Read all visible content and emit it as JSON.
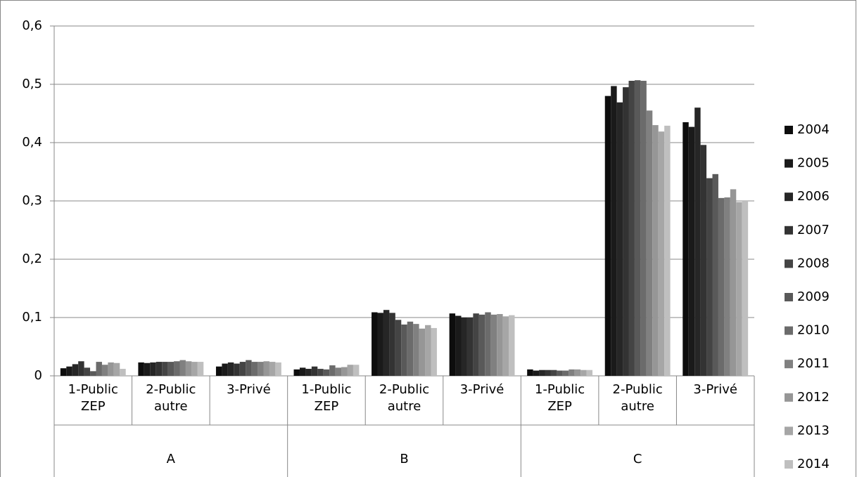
{
  "chart_data": {
    "type": "bar",
    "categories": [
      "1-Public ZEP",
      "2-Public autre",
      "3-Privé",
      "1-Public ZEP",
      "2-Public autre",
      "3-Privé",
      "1-Public ZEP",
      "2-Public autre",
      "3-Privé"
    ],
    "groups": [
      "A",
      "B",
      "C"
    ],
    "series": [
      {
        "name": "2004",
        "color": "#0d0d0d",
        "values": [
          0.013,
          0.023,
          0.016,
          0.011,
          0.109,
          0.107,
          0.011,
          0.48,
          0.435
        ]
      },
      {
        "name": "2005",
        "color": "#1a1a1a",
        "values": [
          0.016,
          0.022,
          0.021,
          0.014,
          0.108,
          0.103,
          0.009,
          0.497,
          0.427
        ]
      },
      {
        "name": "2006",
        "color": "#262626",
        "values": [
          0.02,
          0.023,
          0.023,
          0.012,
          0.113,
          0.1,
          0.01,
          0.469,
          0.46
        ]
      },
      {
        "name": "2007",
        "color": "#333333",
        "values": [
          0.025,
          0.024,
          0.021,
          0.016,
          0.108,
          0.1,
          0.01,
          0.495,
          0.396
        ]
      },
      {
        "name": "2008",
        "color": "#444444",
        "values": [
          0.014,
          0.024,
          0.024,
          0.012,
          0.096,
          0.107,
          0.01,
          0.506,
          0.339
        ]
      },
      {
        "name": "2009",
        "color": "#595959",
        "values": [
          0.008,
          0.024,
          0.027,
          0.011,
          0.088,
          0.105,
          0.009,
          0.507,
          0.346
        ]
      },
      {
        "name": "2010",
        "color": "#6b6b6b",
        "values": [
          0.024,
          0.025,
          0.024,
          0.018,
          0.093,
          0.109,
          0.009,
          0.506,
          0.305
        ]
      },
      {
        "name": "2011",
        "color": "#808080",
        "values": [
          0.019,
          0.027,
          0.024,
          0.014,
          0.089,
          0.105,
          0.011,
          0.455,
          0.306
        ]
      },
      {
        "name": "2012",
        "color": "#969696",
        "values": [
          0.023,
          0.025,
          0.025,
          0.015,
          0.081,
          0.106,
          0.011,
          0.43,
          0.32
        ]
      },
      {
        "name": "2013",
        "color": "#a6a6a6",
        "values": [
          0.022,
          0.024,
          0.024,
          0.019,
          0.087,
          0.102,
          0.01,
          0.419,
          0.298
        ]
      },
      {
        "name": "2014",
        "color": "#bfbfbf",
        "values": [
          0.012,
          0.024,
          0.023,
          0.019,
          0.082,
          0.104,
          0.01,
          0.429,
          0.3
        ]
      }
    ],
    "ylim": [
      0,
      0.6
    ],
    "yticks": [
      0,
      {
        "value": 0.1,
        "label": "0,1"
      },
      {
        "value": 0.2,
        "label": "0,2"
      },
      {
        "value": 0.3,
        "label": "0,3"
      },
      {
        "value": 0.4,
        "label": "0,4"
      },
      {
        "value": 0.5,
        "label": "0,5"
      },
      {
        "value": 0.6,
        "label": "0,6"
      }
    ],
    "grid": true
  }
}
